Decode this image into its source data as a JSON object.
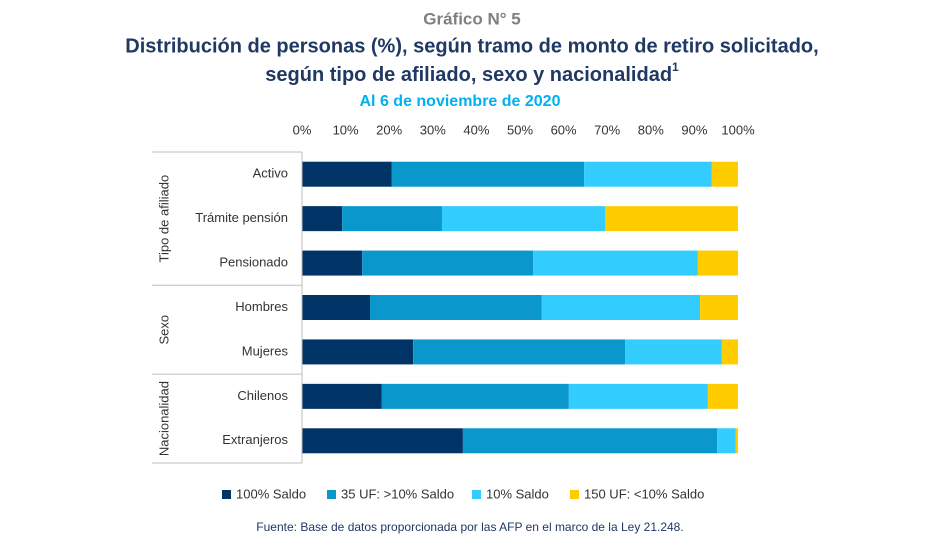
{
  "chart_data": {
    "type": "stacked_barh",
    "label": "Gráfico N° 5",
    "title": [
      "Distribución de personas (%), según tramo de monto de retiro solicitado,",
      "según tipo de afiliado, sexo y nacionalidad"
    ],
    "title_note": "1",
    "subtitle": "Al 6 de noviembre de 2020",
    "groups": [
      {
        "label": "Tipo de afiliado",
        "categories": [
          "Activo",
          "Trámite pensión",
          "Pensionado"
        ]
      },
      {
        "label": "Sexo",
        "categories": [
          "Hombres",
          "Mujeres"
        ]
      },
      {
        "label": "Nacionalidad",
        "categories": [
          "Chilenos",
          "Extranjeros"
        ]
      }
    ],
    "series": [
      {
        "name": "100% Saldo",
        "color": "#003366",
        "values": [
          20.6,
          9.2,
          13.8,
          15.6,
          25.5,
          18.3,
          36.9
        ]
      },
      {
        "name": "35 UF: >10% Saldo",
        "color": "#0a97cc",
        "values": [
          44.1,
          22.9,
          39.2,
          39.4,
          48.6,
          42.9,
          58.3
        ]
      },
      {
        "name": "10% Saldo",
        "color": "#33ccff",
        "values": [
          29.3,
          37.4,
          37.8,
          36.3,
          22.2,
          31.9,
          4.3
        ]
      },
      {
        "name": "150 UF: <10% Saldo",
        "color": "#ffcc00",
        "values": [
          6.0,
          30.5,
          9.2,
          8.7,
          3.7,
          6.9,
          0.5
        ]
      }
    ],
    "xlim": [
      0,
      100
    ],
    "xticks": [
      {
        "value": 0,
        "label": "0%"
      },
      {
        "value": 10,
        "label": "10%"
      },
      {
        "value": 20,
        "label": "20%"
      },
      {
        "value": 30,
        "label": "30%"
      },
      {
        "value": 40,
        "label": "40%"
      },
      {
        "value": 50,
        "label": "50%"
      },
      {
        "value": 60,
        "label": "60%"
      },
      {
        "value": 70,
        "label": "70%"
      },
      {
        "value": 80,
        "label": "80%"
      },
      {
        "value": 90,
        "label": "90%"
      },
      {
        "value": 100,
        "label": "100%"
      }
    ],
    "legend": "bottom",
    "source": "Fuente: Base de datos proporcionada por las AFP en el marco de la Ley 21.248."
  }
}
